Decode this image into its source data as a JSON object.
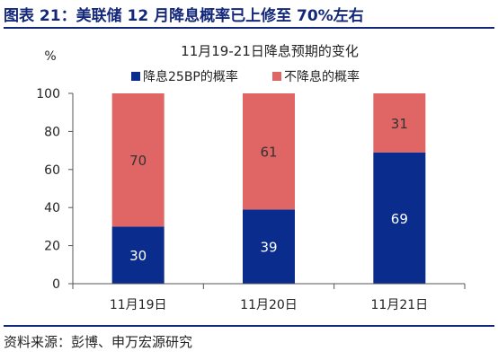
{
  "figure": {
    "title": "图表 21：美联储 12 月降息概率已上修至 70%左右",
    "source": "资料来源：彭博、申万宏源研究"
  },
  "chart_data": {
    "type": "bar",
    "stacked": true,
    "title": "11月19-21日降息预期的变化",
    "ylabel": "%",
    "xlabel": "",
    "ylim": [
      0,
      100
    ],
    "yticks": [
      0,
      20,
      40,
      60,
      80,
      100
    ],
    "categories": [
      "11月19日",
      "11月20日",
      "11月21日"
    ],
    "series": [
      {
        "name": "降息25BP的概率",
        "values": [
          30,
          39,
          69
        ],
        "color": "#0a2c8c",
        "label_color": "#ffffff"
      },
      {
        "name": "不降息的概率",
        "values": [
          70,
          61,
          31
        ],
        "color": "#e06666",
        "label_color": "#333333"
      }
    ],
    "grid": false,
    "legend_position": "top"
  }
}
